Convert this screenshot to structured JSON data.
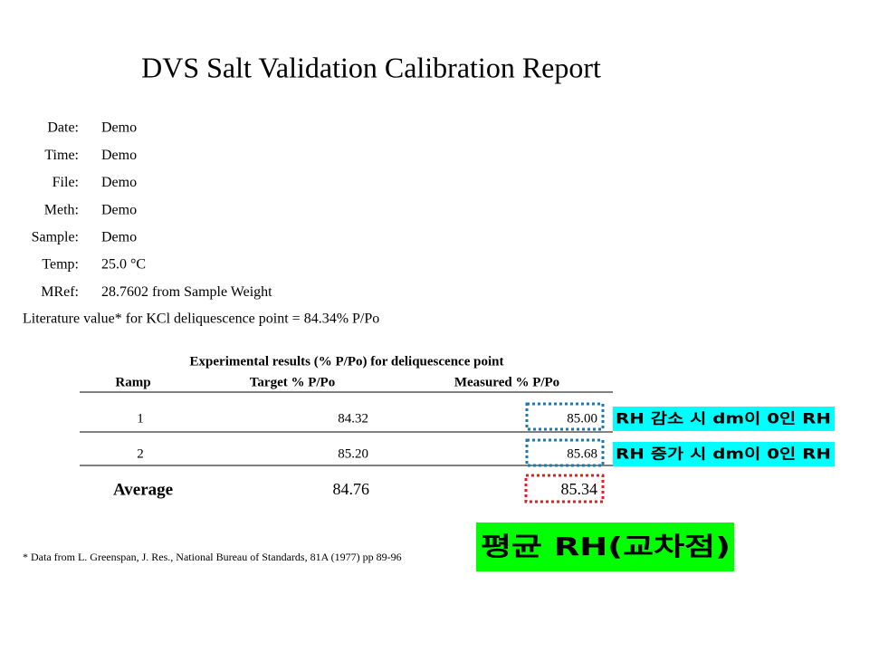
{
  "title": "DVS Salt Validation Calibration Report",
  "fields": [
    {
      "label": "Date:",
      "value": "Demo"
    },
    {
      "label": "Time:",
      "value": "Demo"
    },
    {
      "label": "File:",
      "value": "Demo"
    },
    {
      "label": "Meth:",
      "value": "Demo"
    },
    {
      "label": "Sample:",
      "value": "Demo"
    },
    {
      "label": "Temp:",
      "value": "25.0 °C"
    },
    {
      "label": "MRef:",
      "value": "28.7602 from Sample Weight"
    }
  ],
  "literature": "Literature value* for KCl deliquescence point = 84.34% P/Po",
  "table": {
    "caption": "Experimental results (% P/Po) for deliquescence point",
    "headers": [
      "Ramp",
      "Target % P/Po",
      "Measured % P/Po"
    ],
    "rows": [
      [
        "1",
        "84.32",
        "85.00"
      ],
      [
        "2",
        "85.20",
        "85.68"
      ]
    ],
    "average": {
      "label": "Average",
      "target": "84.76",
      "measured": "85.34"
    }
  },
  "annotations": [
    "RH 감소 시 dm이 0인 RH",
    "RH 증가 시 dm이 0인 RH",
    "평균 RH(교차점)"
  ],
  "footnote": "* Data from L. Greenspan, J. Res., National Bureau of Standards, 81A (1977) pp 89-96"
}
